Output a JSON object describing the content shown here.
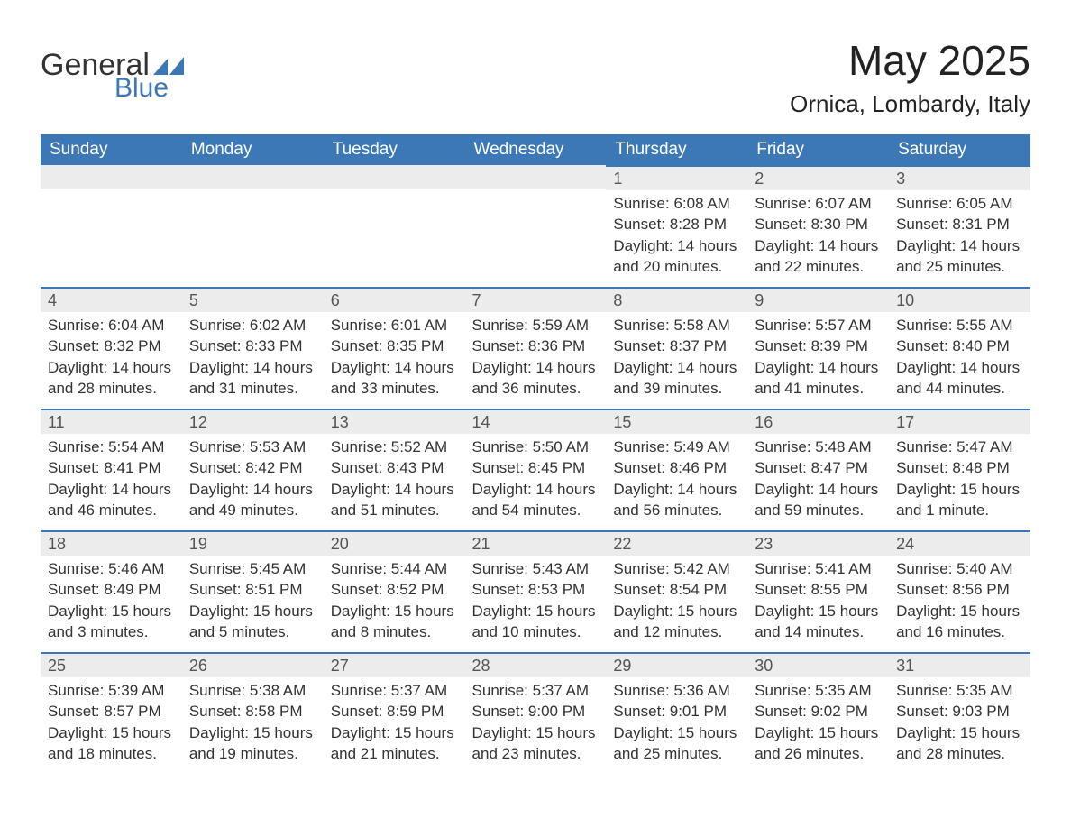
{
  "brand": {
    "word1": "General",
    "word2": "Blue",
    "accent_color": "#3b78b5"
  },
  "title": "May 2025",
  "location": "Ornica, Lombardy, Italy",
  "colors": {
    "header_bg": "#3b78b5",
    "header_text": "#ffffff",
    "daynum_bg": "#ececec",
    "daynum_border": "#3b78b5",
    "body_text": "#333333",
    "page_bg": "#ffffff"
  },
  "day_headers": [
    "Sunday",
    "Monday",
    "Tuesday",
    "Wednesday",
    "Thursday",
    "Friday",
    "Saturday"
  ],
  "weeks": [
    [
      null,
      null,
      null,
      null,
      {
        "n": "1",
        "sunrise": "Sunrise: 6:08 AM",
        "sunset": "Sunset: 8:28 PM",
        "day1": "Daylight: 14 hours",
        "day2": "and 20 minutes."
      },
      {
        "n": "2",
        "sunrise": "Sunrise: 6:07 AM",
        "sunset": "Sunset: 8:30 PM",
        "day1": "Daylight: 14 hours",
        "day2": "and 22 minutes."
      },
      {
        "n": "3",
        "sunrise": "Sunrise: 6:05 AM",
        "sunset": "Sunset: 8:31 PM",
        "day1": "Daylight: 14 hours",
        "day2": "and 25 minutes."
      }
    ],
    [
      {
        "n": "4",
        "sunrise": "Sunrise: 6:04 AM",
        "sunset": "Sunset: 8:32 PM",
        "day1": "Daylight: 14 hours",
        "day2": "and 28 minutes."
      },
      {
        "n": "5",
        "sunrise": "Sunrise: 6:02 AM",
        "sunset": "Sunset: 8:33 PM",
        "day1": "Daylight: 14 hours",
        "day2": "and 31 minutes."
      },
      {
        "n": "6",
        "sunrise": "Sunrise: 6:01 AM",
        "sunset": "Sunset: 8:35 PM",
        "day1": "Daylight: 14 hours",
        "day2": "and 33 minutes."
      },
      {
        "n": "7",
        "sunrise": "Sunrise: 5:59 AM",
        "sunset": "Sunset: 8:36 PM",
        "day1": "Daylight: 14 hours",
        "day2": "and 36 minutes."
      },
      {
        "n": "8",
        "sunrise": "Sunrise: 5:58 AM",
        "sunset": "Sunset: 8:37 PM",
        "day1": "Daylight: 14 hours",
        "day2": "and 39 minutes."
      },
      {
        "n": "9",
        "sunrise": "Sunrise: 5:57 AM",
        "sunset": "Sunset: 8:39 PM",
        "day1": "Daylight: 14 hours",
        "day2": "and 41 minutes."
      },
      {
        "n": "10",
        "sunrise": "Sunrise: 5:55 AM",
        "sunset": "Sunset: 8:40 PM",
        "day1": "Daylight: 14 hours",
        "day2": "and 44 minutes."
      }
    ],
    [
      {
        "n": "11",
        "sunrise": "Sunrise: 5:54 AM",
        "sunset": "Sunset: 8:41 PM",
        "day1": "Daylight: 14 hours",
        "day2": "and 46 minutes."
      },
      {
        "n": "12",
        "sunrise": "Sunrise: 5:53 AM",
        "sunset": "Sunset: 8:42 PM",
        "day1": "Daylight: 14 hours",
        "day2": "and 49 minutes."
      },
      {
        "n": "13",
        "sunrise": "Sunrise: 5:52 AM",
        "sunset": "Sunset: 8:43 PM",
        "day1": "Daylight: 14 hours",
        "day2": "and 51 minutes."
      },
      {
        "n": "14",
        "sunrise": "Sunrise: 5:50 AM",
        "sunset": "Sunset: 8:45 PM",
        "day1": "Daylight: 14 hours",
        "day2": "and 54 minutes."
      },
      {
        "n": "15",
        "sunrise": "Sunrise: 5:49 AM",
        "sunset": "Sunset: 8:46 PM",
        "day1": "Daylight: 14 hours",
        "day2": "and 56 minutes."
      },
      {
        "n": "16",
        "sunrise": "Sunrise: 5:48 AM",
        "sunset": "Sunset: 8:47 PM",
        "day1": "Daylight: 14 hours",
        "day2": "and 59 minutes."
      },
      {
        "n": "17",
        "sunrise": "Sunrise: 5:47 AM",
        "sunset": "Sunset: 8:48 PM",
        "day1": "Daylight: 15 hours",
        "day2": "and 1 minute."
      }
    ],
    [
      {
        "n": "18",
        "sunrise": "Sunrise: 5:46 AM",
        "sunset": "Sunset: 8:49 PM",
        "day1": "Daylight: 15 hours",
        "day2": "and 3 minutes."
      },
      {
        "n": "19",
        "sunrise": "Sunrise: 5:45 AM",
        "sunset": "Sunset: 8:51 PM",
        "day1": "Daylight: 15 hours",
        "day2": "and 5 minutes."
      },
      {
        "n": "20",
        "sunrise": "Sunrise: 5:44 AM",
        "sunset": "Sunset: 8:52 PM",
        "day1": "Daylight: 15 hours",
        "day2": "and 8 minutes."
      },
      {
        "n": "21",
        "sunrise": "Sunrise: 5:43 AM",
        "sunset": "Sunset: 8:53 PM",
        "day1": "Daylight: 15 hours",
        "day2": "and 10 minutes."
      },
      {
        "n": "22",
        "sunrise": "Sunrise: 5:42 AM",
        "sunset": "Sunset: 8:54 PM",
        "day1": "Daylight: 15 hours",
        "day2": "and 12 minutes."
      },
      {
        "n": "23",
        "sunrise": "Sunrise: 5:41 AM",
        "sunset": "Sunset: 8:55 PM",
        "day1": "Daylight: 15 hours",
        "day2": "and 14 minutes."
      },
      {
        "n": "24",
        "sunrise": "Sunrise: 5:40 AM",
        "sunset": "Sunset: 8:56 PM",
        "day1": "Daylight: 15 hours",
        "day2": "and 16 minutes."
      }
    ],
    [
      {
        "n": "25",
        "sunrise": "Sunrise: 5:39 AM",
        "sunset": "Sunset: 8:57 PM",
        "day1": "Daylight: 15 hours",
        "day2": "and 18 minutes."
      },
      {
        "n": "26",
        "sunrise": "Sunrise: 5:38 AM",
        "sunset": "Sunset: 8:58 PM",
        "day1": "Daylight: 15 hours",
        "day2": "and 19 minutes."
      },
      {
        "n": "27",
        "sunrise": "Sunrise: 5:37 AM",
        "sunset": "Sunset: 8:59 PM",
        "day1": "Daylight: 15 hours",
        "day2": "and 21 minutes."
      },
      {
        "n": "28",
        "sunrise": "Sunrise: 5:37 AM",
        "sunset": "Sunset: 9:00 PM",
        "day1": "Daylight: 15 hours",
        "day2": "and 23 minutes."
      },
      {
        "n": "29",
        "sunrise": "Sunrise: 5:36 AM",
        "sunset": "Sunset: 9:01 PM",
        "day1": "Daylight: 15 hours",
        "day2": "and 25 minutes."
      },
      {
        "n": "30",
        "sunrise": "Sunrise: 5:35 AM",
        "sunset": "Sunset: 9:02 PM",
        "day1": "Daylight: 15 hours",
        "day2": "and 26 minutes."
      },
      {
        "n": "31",
        "sunrise": "Sunrise: 5:35 AM",
        "sunset": "Sunset: 9:03 PM",
        "day1": "Daylight: 15 hours",
        "day2": "and 28 minutes."
      }
    ]
  ]
}
